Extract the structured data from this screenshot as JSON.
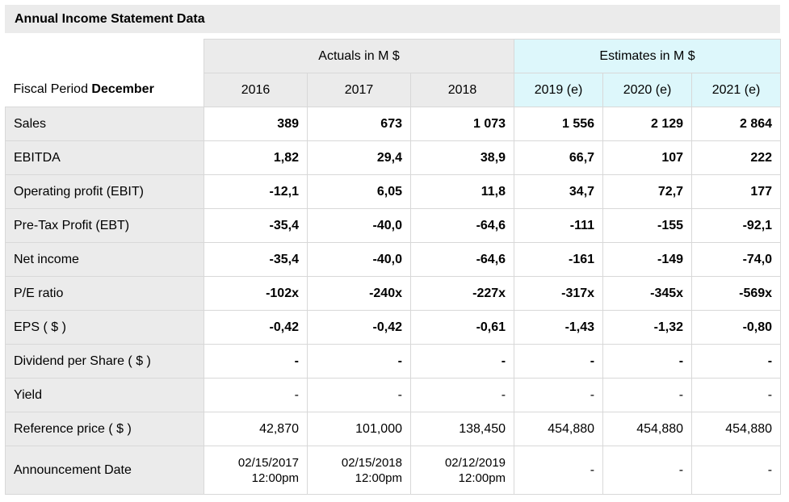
{
  "title": "Annual Income Statement Data",
  "header": {
    "fiscal_label_prefix": "Fiscal Period ",
    "fiscal_label_bold": "December",
    "actuals_group": "Actuals in M $",
    "estimates_group": "Estimates in M $",
    "years": [
      "2016",
      "2017",
      "2018",
      "2019 (e)",
      "2020 (e)",
      "2021 (e)"
    ]
  },
  "rows": [
    {
      "label": "Sales",
      "values": [
        "389",
        "673",
        "1 073",
        "1 556",
        "2 129",
        "2 864"
      ]
    },
    {
      "label": "EBITDA",
      "values": [
        "1,82",
        "29,4",
        "38,9",
        "66,7",
        "107",
        "222"
      ]
    },
    {
      "label": "Operating profit (EBIT)",
      "values": [
        "-12,1",
        "6,05",
        "11,8",
        "34,7",
        "72,7",
        "177"
      ]
    },
    {
      "label": "Pre-Tax Profit (EBT)",
      "values": [
        "-35,4",
        "-40,0",
        "-64,6",
        "-111",
        "-155",
        "-92,1"
      ]
    },
    {
      "label": "Net income",
      "values": [
        "-35,4",
        "-40,0",
        "-64,6",
        "-161",
        "-149",
        "-74,0"
      ]
    },
    {
      "label": "P/E ratio",
      "values": [
        "-102x",
        "-240x",
        "-227x",
        "-317x",
        "-345x",
        "-569x"
      ]
    },
    {
      "label": "EPS ( $ )",
      "values": [
        "-0,42",
        "-0,42",
        "-0,61",
        "-1,43",
        "-1,32",
        "-0,80"
      ]
    },
    {
      "label": "Dividend per Share ( $ )",
      "values": [
        "-",
        "-",
        "-",
        "-",
        "-",
        "-"
      ]
    },
    {
      "label": "Yield",
      "values": [
        "-",
        "-",
        "-",
        "-",
        "-",
        "-"
      ]
    },
    {
      "label": "Reference price ( $ )",
      "values": [
        "42,870",
        "101,000",
        "138,450",
        "454,880",
        "454,880",
        "454,880"
      ]
    }
  ],
  "announcement": {
    "label": "Announcement Date",
    "dates": [
      {
        "date": "02/15/2017",
        "time": "12:00pm"
      },
      {
        "date": "02/15/2018",
        "time": "12:00pm"
      },
      {
        "date": "02/12/2019",
        "time": "12:00pm"
      },
      {
        "date": "-",
        "time": ""
      },
      {
        "date": "-",
        "time": ""
      },
      {
        "date": "-",
        "time": ""
      }
    ]
  }
}
